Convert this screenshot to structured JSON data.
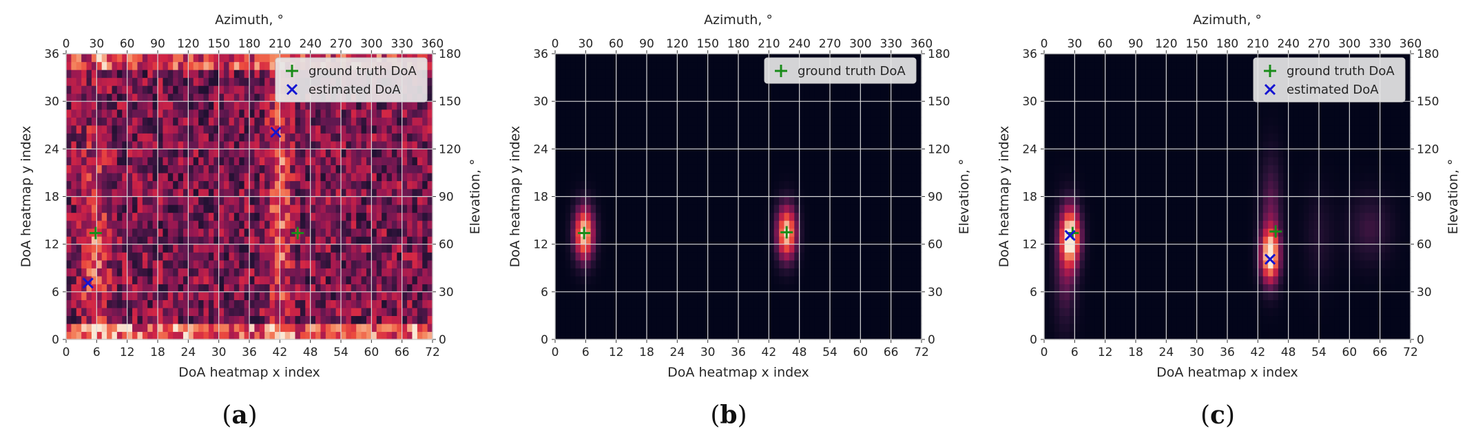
{
  "colors": {
    "ground_truth": "#1a8c1a",
    "estimated": "#1414d2",
    "grid": "#d9d9d9",
    "colormap": "rocket"
  },
  "icons": {
    "ground_truth_marker": "plus-marker",
    "estimated_marker": "x-marker"
  },
  "chart_data": [
    {
      "type": "heatmap",
      "panel": "a",
      "caption": "a",
      "xlabel": "DoA heatmap x index",
      "ylabel": "DoA heatmap y index",
      "top_xlabel": "Azimuth, °",
      "right_ylabel": "Elevation, °",
      "xlim": [
        0,
        72
      ],
      "ylim": [
        0,
        36
      ],
      "xticks": [
        "0",
        "6",
        "12",
        "18",
        "24",
        "30",
        "36",
        "42",
        "48",
        "54",
        "60",
        "66",
        "72"
      ],
      "yticks": [
        "0",
        "6",
        "12",
        "18",
        "24",
        "30",
        "36"
      ],
      "top_ticks": [
        "0",
        "30",
        "60",
        "90",
        "120",
        "150",
        "180",
        "210",
        "240",
        "270",
        "300",
        "330",
        "360"
      ],
      "right_ticks": [
        "0",
        "30",
        "60",
        "90",
        "120",
        "150",
        "180"
      ],
      "grid": true,
      "legend_position": "top-right",
      "legend": [
        {
          "label": "ground truth DoA",
          "marker": "plus"
        },
        {
          "label": "estimated DoA",
          "marker": "x"
        }
      ],
      "ground_truth": [
        {
          "x": 5.8,
          "y": 13.4
        },
        {
          "x": 45.5,
          "y": 13.4
        }
      ],
      "estimated": [
        {
          "x": 4.3,
          "y": 7.1
        },
        {
          "x": 41.2,
          "y": 26.1
        }
      ],
      "heatmap": {
        "style": "noisy",
        "blobs": [
          {
            "x": 5.5,
            "y": 12,
            "sx": 1.8,
            "sy": 10,
            "amp": 0.35
          },
          {
            "x": 42,
            "y": 18,
            "sx": 1.6,
            "sy": 14,
            "amp": 0.35
          }
        ],
        "vmin": 0,
        "vmax": 1
      }
    },
    {
      "type": "heatmap",
      "panel": "b",
      "caption": "b",
      "xlabel": "DoA heatmap x index",
      "ylabel": "DoA heatmap y index",
      "top_xlabel": "Azimuth, °",
      "right_ylabel": "Elevation, °",
      "xlim": [
        0,
        72
      ],
      "ylim": [
        0,
        36
      ],
      "xticks": [
        "0",
        "6",
        "12",
        "18",
        "24",
        "30",
        "36",
        "42",
        "48",
        "54",
        "60",
        "66",
        "72"
      ],
      "yticks": [
        "0",
        "6",
        "12",
        "18",
        "24",
        "30",
        "36"
      ],
      "top_ticks": [
        "0",
        "30",
        "60",
        "90",
        "120",
        "150",
        "180",
        "210",
        "240",
        "270",
        "300",
        "330",
        "360"
      ],
      "right_ticks": [
        "0",
        "30",
        "60",
        "90",
        "120",
        "150",
        "180"
      ],
      "grid": true,
      "legend_position": "top-right",
      "legend": [
        {
          "label": "ground truth DoA",
          "marker": "plus"
        }
      ],
      "ground_truth": [
        {
          "x": 5.7,
          "y": 13.4
        },
        {
          "x": 45.5,
          "y": 13.5
        }
      ],
      "estimated": [],
      "heatmap": {
        "style": "smooth",
        "blobs": [
          {
            "x": 5.7,
            "y": 13.4,
            "sx": 1.4,
            "sy": 2.4,
            "amp": 1.0
          },
          {
            "x": 45.5,
            "y": 13.5,
            "sx": 1.4,
            "sy": 2.4,
            "amp": 1.0
          }
        ],
        "vmin": 0,
        "vmax": 1
      }
    },
    {
      "type": "heatmap",
      "panel": "c",
      "caption": "c",
      "xlabel": "DoA heatmap x index",
      "ylabel": "DoA heatmap y index",
      "top_xlabel": "Azimuth, °",
      "right_ylabel": "Elevation, °",
      "xlim": [
        0,
        72
      ],
      "ylim": [
        0,
        36
      ],
      "xticks": [
        "0",
        "6",
        "12",
        "18",
        "24",
        "30",
        "36",
        "42",
        "48",
        "54",
        "60",
        "66",
        "72"
      ],
      "yticks": [
        "0",
        "6",
        "12",
        "18",
        "24",
        "30",
        "36"
      ],
      "top_ticks": [
        "0",
        "30",
        "60",
        "90",
        "120",
        "150",
        "180",
        "210",
        "240",
        "270",
        "300",
        "330",
        "360"
      ],
      "right_ticks": [
        "0",
        "30",
        "60",
        "90",
        "120",
        "150",
        "180"
      ],
      "grid": true,
      "legend_position": "top-right",
      "legend": [
        {
          "label": "ground truth DoA",
          "marker": "plus"
        },
        {
          "label": "estimated DoA",
          "marker": "x"
        }
      ],
      "ground_truth": [
        {
          "x": 5.6,
          "y": 13.4
        },
        {
          "x": 45.5,
          "y": 13.6
        }
      ],
      "estimated": [
        {
          "x": 5.1,
          "y": 13.1
        },
        {
          "x": 44.4,
          "y": 10.1
        }
      ],
      "heatmap": {
        "style": "smooth",
        "blobs": [
          {
            "x": 5.2,
            "y": 13,
            "sx": 1.4,
            "sy": 2.6,
            "amp": 1.0
          },
          {
            "x": 4.2,
            "y": 9,
            "sx": 1.6,
            "sy": 5,
            "amp": 0.3
          },
          {
            "x": 44.4,
            "y": 10.5,
            "sx": 1.3,
            "sy": 2.4,
            "amp": 1.0
          },
          {
            "x": 44.6,
            "y": 16,
            "sx": 1.5,
            "sy": 5,
            "amp": 0.3
          },
          {
            "x": 64,
            "y": 14,
            "sx": 3,
            "sy": 3,
            "amp": 0.2
          },
          {
            "x": 54,
            "y": 13,
            "sx": 2,
            "sy": 4,
            "amp": 0.12
          }
        ],
        "vmin": 0,
        "vmax": 1
      }
    }
  ]
}
